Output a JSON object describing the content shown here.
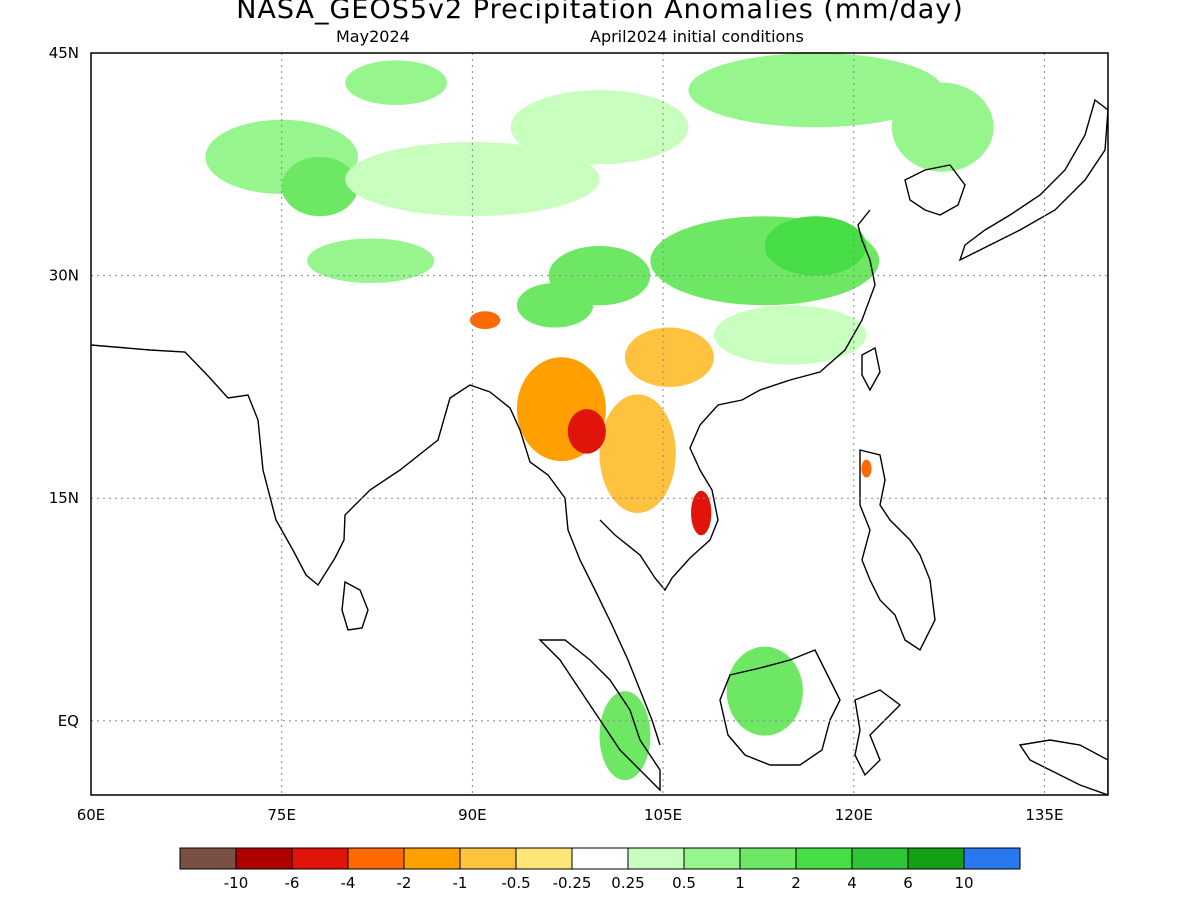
{
  "header": {
    "title": "NASA_GEOS5v2 Precipitation Anomalies (mm/day)",
    "valid_month": "May2024",
    "init_conditions": "April2024 initial conditions"
  },
  "axes": {
    "lat_labels": [
      "45N",
      "30N",
      "15N",
      "EQ"
    ],
    "lon_labels": [
      "60E",
      "75E",
      "90E",
      "105E",
      "120E",
      "135E"
    ],
    "lat_range": [
      -5,
      45
    ],
    "lon_range": [
      60,
      140
    ],
    "grid": "dotted"
  },
  "colorbar": {
    "colors": [
      "#7a4f44",
      "#b00000",
      "#e01408",
      "#ff6a00",
      "#ffa000",
      "#ffc23e",
      "#ffe47a",
      "#ffffff",
      "#c8ffbe",
      "#96f58c",
      "#6ee864",
      "#46dd46",
      "#2ec636",
      "#14a014",
      "#2a78f0"
    ],
    "labels": [
      "-10",
      "-6",
      "-4",
      "-2",
      "-1",
      "-0.5",
      "-0.25",
      "0.25",
      "0.5",
      "1",
      "2",
      "4",
      "6",
      "10"
    ]
  },
  "anomaly_regions": [
    {
      "lon": 75,
      "lat": 38,
      "rx": 6,
      "ry": 2.5,
      "level": 9
    },
    {
      "lon": 78,
      "lat": 36,
      "rx": 3,
      "ry": 2,
      "level": 10
    },
    {
      "lon": 82,
      "lat": 31,
      "rx": 5,
      "ry": 1.5,
      "level": 9
    },
    {
      "lon": 90,
      "lat": 36.5,
      "rx": 10,
      "ry": 2.5,
      "level": 8
    },
    {
      "lon": 84,
      "lat": 43,
      "rx": 4,
      "ry": 1.5,
      "level": 9
    },
    {
      "lon": 100,
      "lat": 40,
      "rx": 7,
      "ry": 2.5,
      "level": 8
    },
    {
      "lon": 117,
      "lat": 42.5,
      "rx": 10,
      "ry": 2.5,
      "level": 9
    },
    {
      "lon": 127,
      "lat": 40,
      "rx": 4,
      "ry": 3,
      "level": 9
    },
    {
      "lon": 113,
      "lat": 31,
      "rx": 9,
      "ry": 3,
      "level": 10
    },
    {
      "lon": 117,
      "lat": 32,
      "rx": 4,
      "ry": 2,
      "level": 11
    },
    {
      "lon": 100,
      "lat": 30,
      "rx": 4,
      "ry": 2,
      "level": 10
    },
    {
      "lon": 115,
      "lat": 26,
      "rx": 6,
      "ry": 2,
      "level": 8
    },
    {
      "lon": 96.5,
      "lat": 28,
      "rx": 3,
      "ry": 1.5,
      "level": 10
    },
    {
      "lon": 97,
      "lat": 21,
      "rx": 3.5,
      "ry": 3.5,
      "level": 4
    },
    {
      "lon": 103,
      "lat": 18,
      "rx": 3,
      "ry": 4,
      "level": 5
    },
    {
      "lon": 105.5,
      "lat": 24.5,
      "rx": 3.5,
      "ry": 2,
      "level": 5
    },
    {
      "lon": 99,
      "lat": 19.5,
      "rx": 1.5,
      "ry": 1.5,
      "level": 2
    },
    {
      "lon": 108,
      "lat": 14,
      "rx": 0.8,
      "ry": 1.5,
      "level": 2
    },
    {
      "lon": 91,
      "lat": 27,
      "rx": 1.2,
      "ry": 0.6,
      "level": 3
    },
    {
      "lon": 113,
      "lat": 2,
      "rx": 3,
      "ry": 3,
      "level": 10
    },
    {
      "lon": 102,
      "lat": -1,
      "rx": 2,
      "ry": 3,
      "level": 10
    },
    {
      "lon": 121,
      "lat": 17,
      "rx": 0.4,
      "ry": 0.6,
      "level": 3
    }
  ]
}
